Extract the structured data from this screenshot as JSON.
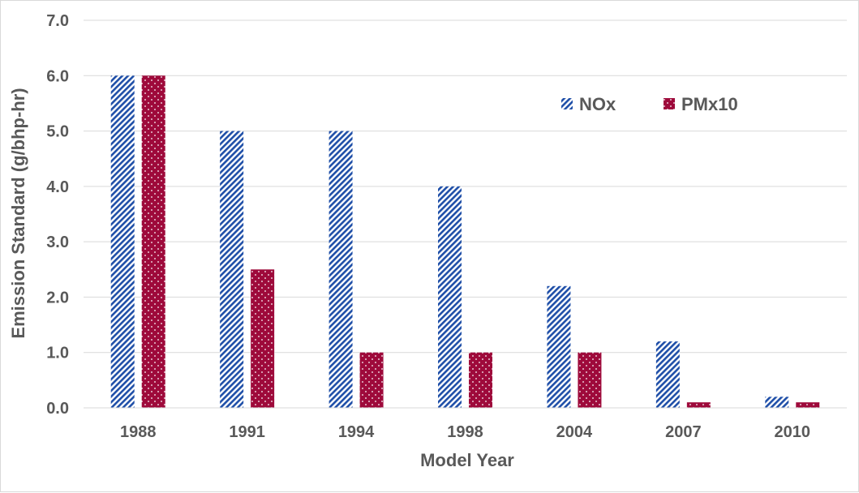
{
  "chart_data": {
    "type": "bar",
    "categories": [
      "1988",
      "1991",
      "1994",
      "1998",
      "2004",
      "2007",
      "2010"
    ],
    "series": [
      {
        "name": "NOx",
        "values": [
          6.0,
          5.0,
          5.0,
          4.0,
          2.2,
          1.2,
          0.2
        ],
        "color": "#1f4fa8",
        "pattern": "diagonal-stripes"
      },
      {
        "name": "PMx10",
        "values": [
          6.0,
          2.5,
          1.0,
          1.0,
          1.0,
          0.1,
          0.1
        ],
        "color": "#9e0a3b",
        "pattern": "white-dots"
      }
    ],
    "title": "",
    "xlabel": "Model Year",
    "ylabel": "Emission Standard (g/bhp-hr)",
    "ylim": [
      0,
      7
    ],
    "yticks": [
      "0.0",
      "1.0",
      "2.0",
      "3.0",
      "4.0",
      "5.0",
      "6.0",
      "7.0"
    ],
    "grid": true,
    "legend_position": "top-right"
  }
}
